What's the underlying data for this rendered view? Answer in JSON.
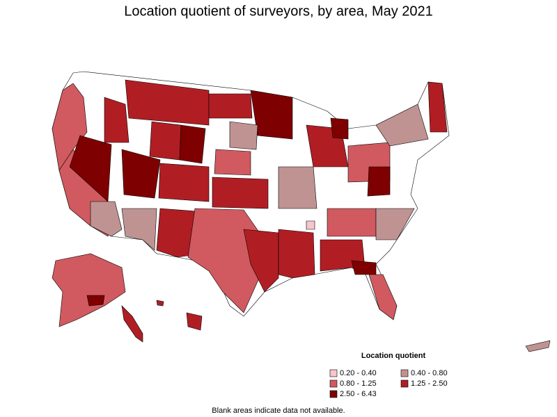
{
  "title": "Location quotient of surveyors, by area, May 2021",
  "legend": {
    "title": "Location quotient",
    "items": [
      {
        "label": "0.20 - 0.40",
        "color": "#f5c6cc"
      },
      {
        "label": "0.40 - 0.80",
        "color": "#c09393"
      },
      {
        "label": "0.80 - 1.25",
        "color": "#d05a60"
      },
      {
        "label": "1.25 - 2.50",
        "color": "#b01e24"
      },
      {
        "label": "2.50 - 6.43",
        "color": "#7f0000"
      }
    ]
  },
  "footnote": "Blank areas indicate data not available."
}
